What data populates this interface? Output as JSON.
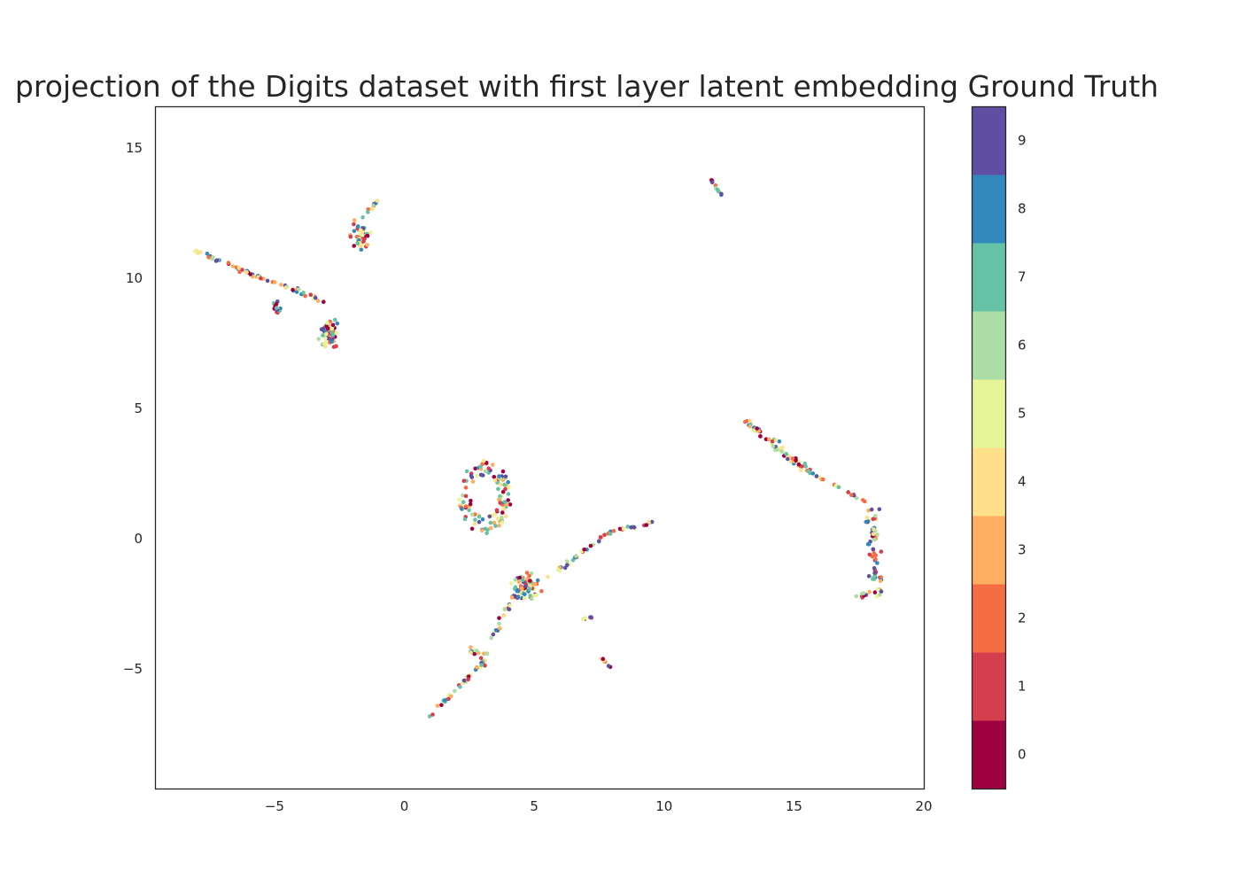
{
  "chart_data": {
    "type": "scatter",
    "title": "projection of the Digits dataset with first layer latent embedding Ground Truth",
    "xlim": [
      -9.6,
      20.0
    ],
    "ylim": [
      -9.6,
      16.6
    ],
    "x_ticks": [
      -5,
      0,
      5,
      10,
      15,
      20
    ],
    "x_tick_labels": [
      "−5",
      "0",
      "5",
      "10",
      "15",
      "20"
    ],
    "y_ticks": [
      -5,
      0,
      5,
      10,
      15
    ],
    "y_tick_labels": [
      "−5",
      "0",
      "5",
      "10",
      "15"
    ],
    "grid": false,
    "colorbar": {
      "ticks": [
        "0",
        "1",
        "2",
        "3",
        "4",
        "5",
        "6",
        "7",
        "8",
        "9"
      ],
      "colors": [
        "#9e0142",
        "#d53e4f",
        "#f46d43",
        "#fdae61",
        "#fee08b",
        "#e6f598",
        "#abdda4",
        "#66c2a5",
        "#3288bd",
        "#5e4fa2"
      ]
    },
    "clusters": [
      {
        "type": "line",
        "x0": -8.2,
        "y0": 11.1,
        "x1": -5.0,
        "y1": 9.8,
        "n": 40,
        "jitter": 0.08
      },
      {
        "type": "line",
        "x0": -5.0,
        "y0": 9.8,
        "x1": -3.0,
        "y1": 9.1,
        "n": 20,
        "jitter": 0.15
      },
      {
        "type": "blob",
        "cx": -2.9,
        "cy": 7.9,
        "rx": 0.45,
        "ry": 0.8,
        "n": 70
      },
      {
        "type": "blob",
        "cx": -4.9,
        "cy": 8.9,
        "rx": 0.2,
        "ry": 0.4,
        "n": 15
      },
      {
        "type": "blob",
        "cx": -1.7,
        "cy": 11.6,
        "rx": 0.5,
        "ry": 0.8,
        "n": 55
      },
      {
        "type": "line",
        "x0": -1.6,
        "y0": 12.3,
        "x1": -1.0,
        "y1": 13.0,
        "n": 10,
        "jitter": 0.05
      },
      {
        "type": "line",
        "x0": 11.8,
        "y0": 13.8,
        "x1": 12.2,
        "y1": 13.2,
        "n": 12,
        "jitter": 0.03
      },
      {
        "type": "ring",
        "cx": 3.1,
        "cy": 1.6,
        "rx": 1.0,
        "ry": 1.4,
        "n": 110
      },
      {
        "type": "blob",
        "cx": 4.6,
        "cy": -1.9,
        "rx": 0.9,
        "ry": 0.8,
        "n": 80
      },
      {
        "type": "line",
        "x0": 5.5,
        "y0": -1.5,
        "x1": 8.0,
        "y1": 0.3,
        "n": 30,
        "jitter": 0.08
      },
      {
        "type": "line",
        "x0": 8.0,
        "y0": 0.3,
        "x1": 9.5,
        "y1": 0.6,
        "n": 15,
        "jitter": 0.06
      },
      {
        "type": "line",
        "x0": 4.0,
        "y0": -2.5,
        "x1": 3.0,
        "y1": -4.8,
        "n": 25,
        "jitter": 0.15
      },
      {
        "type": "line",
        "x0": 3.0,
        "y0": -4.8,
        "x1": 0.9,
        "y1": -6.9,
        "n": 30,
        "jitter": 0.06
      },
      {
        "type": "blob",
        "cx": 2.6,
        "cy": -4.3,
        "rx": 0.3,
        "ry": 0.3,
        "n": 10
      },
      {
        "type": "line",
        "x0": 6.7,
        "y0": -3.1,
        "x1": 7.4,
        "y1": -3.0,
        "n": 6,
        "jitter": 0.03
      },
      {
        "type": "line",
        "x0": 7.5,
        "y0": -4.5,
        "x1": 8.0,
        "y1": -5.0,
        "n": 8,
        "jitter": 0.03
      },
      {
        "type": "line",
        "x0": 12.9,
        "y0": 4.7,
        "x1": 15.5,
        "y1": 2.6,
        "n": 55,
        "jitter": 0.2
      },
      {
        "type": "line",
        "x0": 15.5,
        "y0": 2.6,
        "x1": 17.8,
        "y1": 1.4,
        "n": 20,
        "jitter": 0.05
      },
      {
        "type": "line",
        "x0": 18.0,
        "y0": 1.2,
        "x1": 18.2,
        "y1": -2.2,
        "n": 55,
        "jitter": 0.25
      },
      {
        "type": "line",
        "x0": 17.4,
        "y0": -2.2,
        "x1": 18.4,
        "y1": -2.0,
        "n": 14,
        "jitter": 0.08
      }
    ]
  }
}
